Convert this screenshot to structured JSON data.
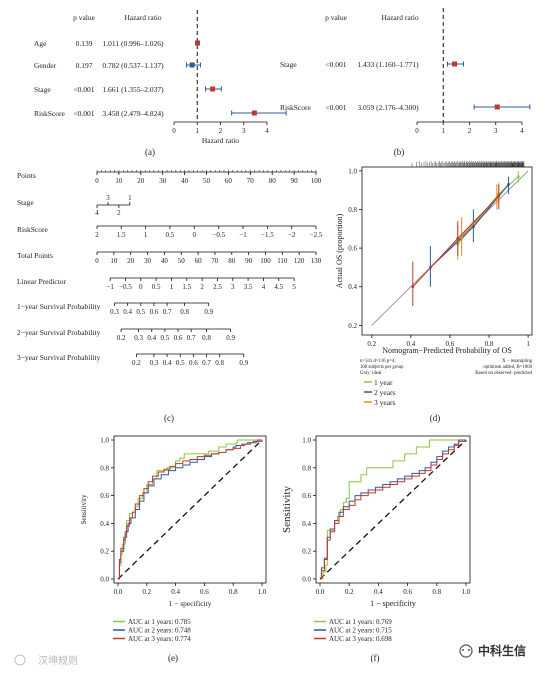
{
  "figure": {
    "panel_labels": [
      "(a)",
      "(b)",
      "(c)",
      "(d)",
      "(e)",
      "(f)"
    ],
    "watermarks": [
      "汉坤规则",
      "中科生信"
    ]
  },
  "chart_data": [
    {
      "panel": "(a)",
      "type": "forest",
      "col_headers": [
        "p value",
        "Hazard ratio"
      ],
      "xlabel": "Hazard ratio",
      "xlim": [
        0,
        4
      ],
      "xticks": [
        0,
        1,
        2,
        3,
        4
      ],
      "reference_line": 1,
      "rows": [
        {
          "label": "Age",
          "p": "0.139",
          "hr_text": "1.011 (0.996–1.026)",
          "hr": 1.011,
          "lo": 0.996,
          "hi": 1.026,
          "color": "#c0392b"
        },
        {
          "label": "Gender",
          "p": "0.197",
          "hr_text": "0.782 (0.537–1.137)",
          "hr": 0.782,
          "lo": 0.537,
          "hi": 1.137,
          "color": "#2c5aa0"
        },
        {
          "label": "Stage",
          "p": "<0.001",
          "hr_text": "1.661 (1.355–2.037)",
          "hr": 1.661,
          "lo": 1.355,
          "hi": 2.037,
          "color": "#c0392b"
        },
        {
          "label": "RiskScore",
          "p": "<0.001",
          "hr_text": "3.458 (2.479–4.824)",
          "hr": 3.458,
          "lo": 2.479,
          "hi": 4.824,
          "color": "#c0392b"
        }
      ]
    },
    {
      "panel": "(b)",
      "type": "forest",
      "col_headers": [
        "p value",
        "Hazard ratio"
      ],
      "xlabel": "",
      "xlim": [
        0,
        4
      ],
      "xticks": [
        0,
        1,
        2,
        3,
        4
      ],
      "reference_line": 1,
      "rows": [
        {
          "label": "Stage",
          "p": "<0.001",
          "hr_text": "1.433 (1.160–1.771)",
          "hr": 1.433,
          "lo": 1.16,
          "hi": 1.771,
          "color": "#c0392b"
        },
        {
          "label": "RiskScore",
          "p": "<0.001",
          "hr_text": "3.059 (2.176–4.300)",
          "hr": 3.059,
          "lo": 2.176,
          "hi": 4.3,
          "color": "#c0392b"
        }
      ]
    },
    {
      "panel": "(c)",
      "type": "nomogram",
      "rows": [
        {
          "label": "Points",
          "ticks": [
            "0",
            "10",
            "20",
            "30",
            "40",
            "50",
            "60",
            "70",
            "80",
            "90",
            "100"
          ],
          "pos": [
            0,
            10,
            20,
            30,
            40,
            50,
            60,
            70,
            80,
            90,
            100
          ]
        },
        {
          "label": "Stage",
          "ticks_above": [
            "3",
            "1"
          ],
          "pos_above": [
            5,
            15
          ],
          "ticks_below": [
            "4",
            "2"
          ],
          "pos_below": [
            0,
            10
          ]
        },
        {
          "label": "RiskScore",
          "ticks": [
            "2",
            "1.5",
            "1",
            "0.5",
            "0",
            "−0.5",
            "−1",
            "−1.5",
            "−2",
            "−2.5"
          ],
          "pos": [
            0,
            11.1,
            22.2,
            33.3,
            44.4,
            55.6,
            66.7,
            77.8,
            88.9,
            100
          ]
        },
        {
          "label": "Total Points",
          "ticks": [
            "0",
            "10",
            "20",
            "30",
            "40",
            "50",
            "60",
            "70",
            "80",
            "90",
            "100",
            "110",
            "120",
            "130"
          ],
          "pos": [
            0,
            7.69,
            15.38,
            23.08,
            30.77,
            38.46,
            46.15,
            53.85,
            61.54,
            69.23,
            76.92,
            84.62,
            92.31,
            100
          ]
        },
        {
          "label": "Linear Predictor",
          "ticks": [
            "−1",
            "−0.5",
            "0",
            "0.5",
            "1",
            "1.5",
            "2",
            "2.5",
            "3",
            "3.5",
            "4",
            "4.5",
            "5"
          ],
          "pos": [
            6,
            13,
            20,
            27,
            34,
            41,
            48,
            55,
            62,
            69,
            76,
            83,
            90
          ]
        },
        {
          "label": "1−year Survival Probability",
          "ticks": [
            "0.3",
            "0.4",
            "0.5",
            "0.6",
            "0.7",
            "0.8",
            "0.9"
          ],
          "pos": [
            8,
            14,
            20,
            26,
            32,
            40,
            51
          ]
        },
        {
          "label": "2−year Survival Probability",
          "ticks": [
            "0.2",
            "0.3",
            "0.4",
            "0.5",
            "0.6",
            "0.7",
            "0.8",
            "0.9"
          ],
          "pos": [
            11,
            19,
            25,
            31,
            37,
            43,
            50,
            61
          ]
        },
        {
          "label": "3−year Survival Probability",
          "ticks": [
            "0.2",
            "0.3",
            "0.4",
            "0.5",
            "0.6",
            "0.7",
            "0.8",
            "0.9"
          ],
          "pos": [
            18,
            26,
            32,
            38,
            44,
            50,
            56,
            67
          ]
        }
      ]
    },
    {
      "panel": "(d)",
      "type": "line",
      "xlabel": "Nomogram−Predicted Probability of OS",
      "ylabel": "Actual OS (proportion)",
      "xlim": [
        0.15,
        1.02
      ],
      "ylim": [
        0.15,
        1.02
      ],
      "xticks": [
        0.2,
        0.4,
        0.6,
        0.8,
        1.0
      ],
      "yticks": [
        0.2,
        0.4,
        0.6,
        0.8,
        1.0
      ],
      "notes_left": [
        "n=341 d=116 p=4,",
        "100 subjects per group",
        "Gray: ideal"
      ],
      "notes_right": [
        "X − resampling",
        "optimism added, B=1000",
        "Based on observed−predicted"
      ],
      "series": [
        {
          "name": "1 year",
          "color": "#8dc63f",
          "points": [
            {
              "x": 0.64,
              "y": 0.62,
              "lo": 0.54,
              "hi": 0.72
            },
            {
              "x": 0.85,
              "y": 0.88,
              "lo": 0.82,
              "hi": 0.94
            },
            {
              "x": 0.95,
              "y": 0.97,
              "lo": 0.94,
              "hi": 1.0
            }
          ]
        },
        {
          "name": "2 years",
          "color": "#2c5aa0",
          "points": [
            {
              "x": 0.5,
              "y": 0.5,
              "lo": 0.4,
              "hi": 0.61
            },
            {
              "x": 0.72,
              "y": 0.71,
              "lo": 0.63,
              "hi": 0.8
            },
            {
              "x": 0.9,
              "y": 0.93,
              "lo": 0.88,
              "hi": 0.97
            }
          ]
        },
        {
          "name": "3 years",
          "color": "#e08a1e",
          "points": [
            {
              "x": 0.66,
              "y": 0.66,
              "lo": 0.56,
              "hi": 0.76
            },
            {
              "x": 0.84,
              "y": 0.86,
              "lo": 0.8,
              "hi": 0.93
            }
          ]
        },
        {
          "name": "",
          "color": "#c0392b",
          "points": [
            {
              "x": 0.41,
              "y": 0.4,
              "lo": 0.3,
              "hi": 0.53
            },
            {
              "x": 0.64,
              "y": 0.65,
              "lo": 0.56,
              "hi": 0.74
            },
            {
              "x": 0.85,
              "y": 0.87,
              "lo": 0.8,
              "hi": 0.93
            }
          ]
        }
      ]
    },
    {
      "panel": "(e)",
      "type": "line",
      "xlabel": "1 − specificity",
      "ylabel": "Sensitivity",
      "xlim": [
        0,
        1
      ],
      "ylim": [
        0,
        1
      ],
      "xticks": [
        0,
        0.2,
        0.4,
        0.6,
        0.8,
        1.0
      ],
      "yticks": [
        0,
        0.2,
        0.4,
        0.6,
        0.8,
        1.0
      ],
      "series": [
        {
          "name": "AUC at 1 years: 0.785",
          "color": "#8dc63f",
          "x": [
            0,
            0.01,
            0.02,
            0.03,
            0.05,
            0.06,
            0.08,
            0.1,
            0.12,
            0.14,
            0.17,
            0.2,
            0.24,
            0.27,
            0.3,
            0.34,
            0.38,
            0.4,
            0.43,
            0.46,
            0.5,
            0.55,
            0.6,
            0.63,
            0.66,
            0.68,
            0.7,
            0.72,
            0.75,
            0.78,
            0.8,
            0.82,
            0.83,
            0.86,
            0.88,
            0.92,
            0.95,
            0.97,
            1.0
          ],
          "y": [
            0,
            0.1,
            0.18,
            0.25,
            0.32,
            0.42,
            0.47,
            0.48,
            0.52,
            0.58,
            0.62,
            0.68,
            0.72,
            0.78,
            0.78,
            0.8,
            0.8,
            0.85,
            0.87,
            0.9,
            0.9,
            0.9,
            0.9,
            0.92,
            0.92,
            0.92,
            0.95,
            0.95,
            0.97,
            0.97,
            0.97,
            0.98,
            1.0,
            1.0,
            1.0,
            1.0,
            1.0,
            1.0,
            1.0
          ]
        },
        {
          "name": "AUC at 2 years: 0.748",
          "color": "#2c5aa0",
          "x": [
            0,
            0.01,
            0.02,
            0.04,
            0.05,
            0.07,
            0.09,
            0.12,
            0.15,
            0.18,
            0.21,
            0.25,
            0.3,
            0.35,
            0.4,
            0.45,
            0.5,
            0.55,
            0.6,
            0.65,
            0.7,
            0.75,
            0.8,
            0.82,
            0.86,
            0.9,
            0.94,
            0.97,
            1.0
          ],
          "y": [
            0,
            0.12,
            0.2,
            0.28,
            0.34,
            0.4,
            0.44,
            0.5,
            0.56,
            0.62,
            0.67,
            0.72,
            0.75,
            0.78,
            0.8,
            0.82,
            0.84,
            0.86,
            0.88,
            0.9,
            0.91,
            0.93,
            0.95,
            0.96,
            0.97,
            0.98,
            0.99,
            1.0,
            1.0
          ]
        },
        {
          "name": "AUC at 3 years: 0.774",
          "color": "#c0392b",
          "x": [
            0,
            0.01,
            0.02,
            0.04,
            0.06,
            0.08,
            0.1,
            0.12,
            0.15,
            0.18,
            0.21,
            0.24,
            0.28,
            0.32,
            0.36,
            0.4,
            0.45,
            0.5,
            0.55,
            0.6,
            0.65,
            0.7,
            0.75,
            0.8,
            0.85,
            0.88,
            0.92,
            0.96,
            1.0
          ],
          "y": [
            0,
            0.14,
            0.22,
            0.3,
            0.38,
            0.44,
            0.48,
            0.54,
            0.6,
            0.65,
            0.7,
            0.74,
            0.77,
            0.79,
            0.81,
            0.83,
            0.85,
            0.86,
            0.88,
            0.89,
            0.9,
            0.91,
            0.93,
            0.94,
            0.96,
            0.97,
            0.98,
            0.99,
            1.0
          ]
        }
      ]
    },
    {
      "panel": "(f)",
      "type": "line",
      "xlabel": "1 − specificity",
      "ylabel": "Sensitivity",
      "xlim": [
        0,
        1
      ],
      "ylim": [
        0,
        1
      ],
      "xticks": [
        0,
        0.2,
        0.4,
        0.6,
        0.8,
        1.0
      ],
      "yticks": [
        0,
        0.2,
        0.4,
        0.6,
        0.8,
        1.0
      ],
      "series": [
        {
          "name": "AUC at 1 years: 0.769",
          "color": "#8dc63f",
          "x": [
            0,
            0.02,
            0.04,
            0.05,
            0.08,
            0.1,
            0.12,
            0.14,
            0.16,
            0.18,
            0.2,
            0.25,
            0.28,
            0.32,
            0.36,
            0.4,
            0.45,
            0.5,
            0.52,
            0.55,
            0.58,
            0.62,
            0.66,
            0.7,
            0.75,
            0.8,
            0.85,
            0.9,
            0.95,
            1.0
          ],
          "y": [
            0,
            0.05,
            0.1,
            0.35,
            0.35,
            0.42,
            0.45,
            0.5,
            0.55,
            0.58,
            0.7,
            0.7,
            0.75,
            0.8,
            0.8,
            0.8,
            0.8,
            0.85,
            0.85,
            0.85,
            0.9,
            0.9,
            0.95,
            0.95,
            1.0,
            1.0,
            1.0,
            1.0,
            1.0,
            1.0
          ]
        },
        {
          "name": "AUC at 2 years: 0.715",
          "color": "#2c5aa0",
          "x": [
            0,
            0.01,
            0.03,
            0.05,
            0.07,
            0.1,
            0.13,
            0.16,
            0.2,
            0.24,
            0.28,
            0.33,
            0.38,
            0.43,
            0.48,
            0.53,
            0.58,
            0.63,
            0.68,
            0.72,
            0.76,
            0.8,
            0.84,
            0.88,
            0.92,
            0.95,
            1.0
          ],
          "y": [
            0,
            0.08,
            0.15,
            0.3,
            0.36,
            0.42,
            0.48,
            0.52,
            0.56,
            0.6,
            0.62,
            0.64,
            0.66,
            0.68,
            0.7,
            0.72,
            0.74,
            0.76,
            0.78,
            0.8,
            0.84,
            0.88,
            0.92,
            0.95,
            0.97,
            1.0,
            1.0
          ]
        },
        {
          "name": "AUC at 3 years: 0.698",
          "color": "#c0392b",
          "x": [
            0,
            0.01,
            0.03,
            0.05,
            0.07,
            0.1,
            0.13,
            0.16,
            0.2,
            0.24,
            0.28,
            0.33,
            0.38,
            0.43,
            0.48,
            0.53,
            0.58,
            0.63,
            0.68,
            0.72,
            0.76,
            0.8,
            0.84,
            0.88,
            0.92,
            0.95,
            1.0
          ],
          "y": [
            0,
            0.06,
            0.14,
            0.28,
            0.34,
            0.4,
            0.45,
            0.5,
            0.53,
            0.57,
            0.6,
            0.62,
            0.64,
            0.66,
            0.68,
            0.7,
            0.72,
            0.74,
            0.76,
            0.78,
            0.82,
            0.86,
            0.9,
            0.93,
            0.96,
            0.99,
            1.0
          ]
        }
      ]
    }
  ]
}
